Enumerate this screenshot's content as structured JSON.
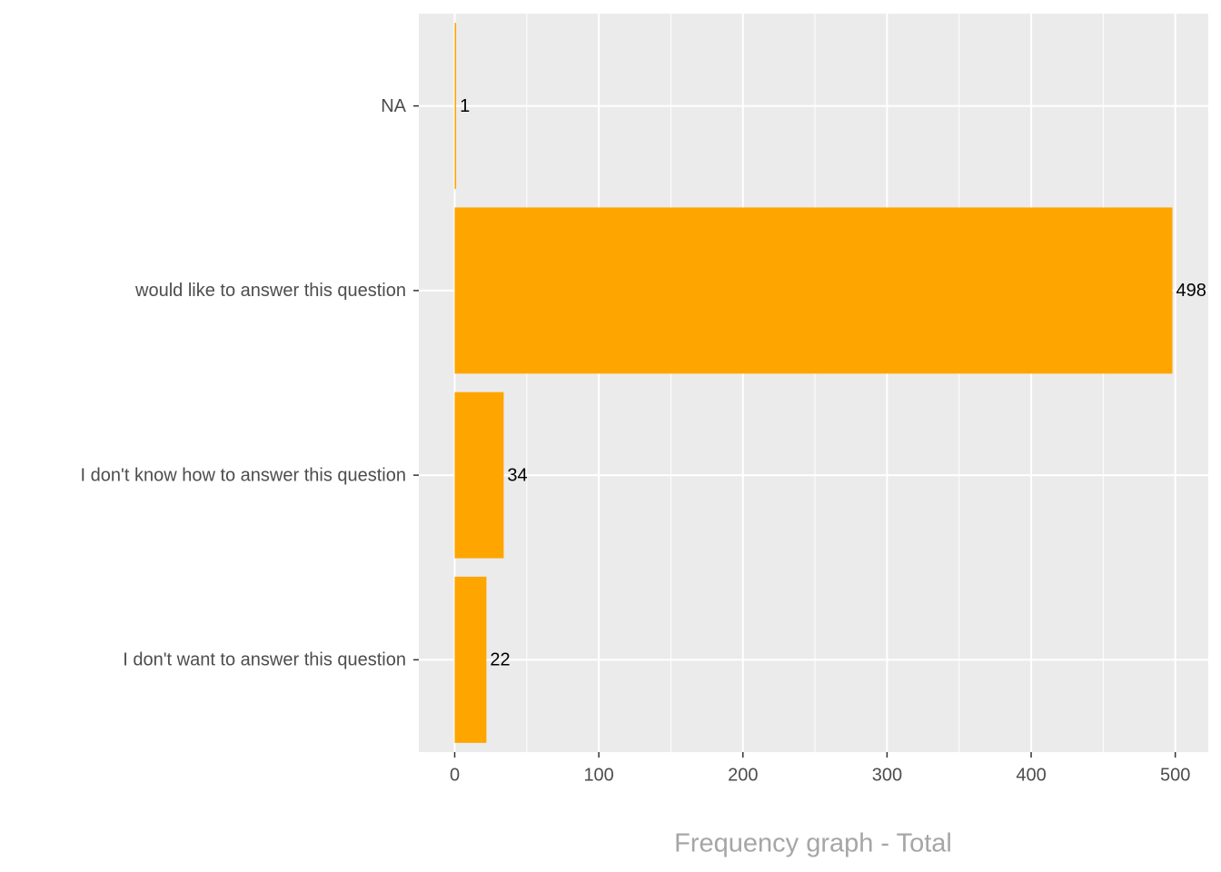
{
  "chart_data": {
    "type": "barh",
    "x_label": "Frequency graph - Total",
    "categories": [
      "NA",
      "would like to answer this question",
      "I don't know how to answer this question",
      "I don't want to answer this question"
    ],
    "values": [
      1,
      498,
      34,
      22
    ],
    "color": "#ffa500",
    "xlim": [
      -24.9,
      522.9
    ],
    "xticks": [
      0,
      100,
      200,
      300,
      400,
      500
    ],
    "grid": true,
    "minor_grid": true
  }
}
